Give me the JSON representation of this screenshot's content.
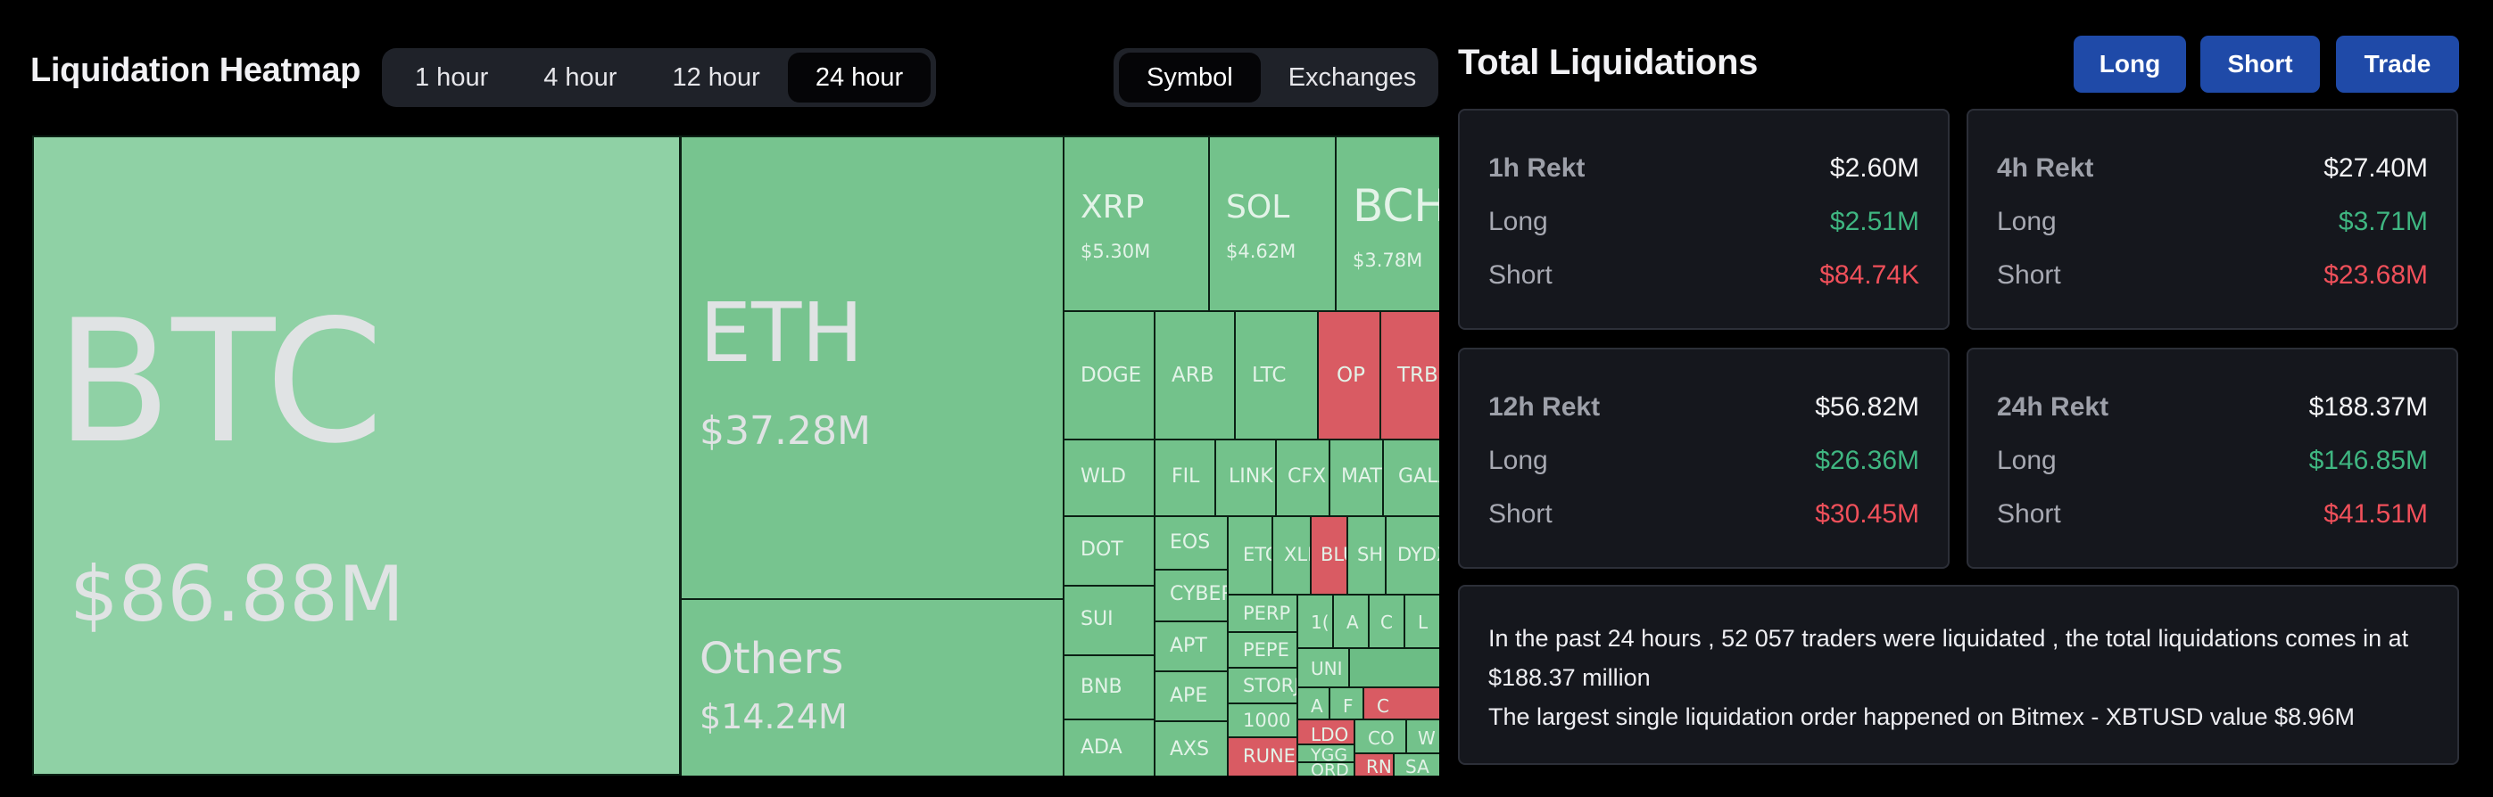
{
  "heatmap": {
    "title": "Liquidation Heatmap",
    "timeframes": [
      {
        "label": "1 hour",
        "active": false
      },
      {
        "label": "4 hour",
        "active": false
      },
      {
        "label": "12 hour",
        "active": false
      },
      {
        "label": "24 hour",
        "active": true
      }
    ],
    "views": [
      {
        "label": "Symbol",
        "active": true
      },
      {
        "label": "Exchanges",
        "active": false
      }
    ],
    "tiles": [
      {
        "symbol": "BTC",
        "value": "$86.88M",
        "status": "long"
      },
      {
        "symbol": "ETH",
        "value": "$37.28M",
        "status": "long"
      },
      {
        "symbol": "Others",
        "value": "$14.24M",
        "status": "long"
      },
      {
        "symbol": "XRP",
        "value": "$5.30M",
        "status": "long"
      },
      {
        "symbol": "SOL",
        "value": "$4.62M",
        "status": "long"
      },
      {
        "symbol": "BCH",
        "value": "$3.78M",
        "status": "long"
      },
      {
        "symbol": "DOGE",
        "status": "long"
      },
      {
        "symbol": "ARB",
        "status": "long"
      },
      {
        "symbol": "LTC",
        "status": "long"
      },
      {
        "symbol": "OP",
        "status": "short"
      },
      {
        "symbol": "TRB",
        "status": "short"
      },
      {
        "symbol": "WLD",
        "status": "long"
      },
      {
        "symbol": "FIL",
        "status": "long"
      },
      {
        "symbol": "LINK",
        "status": "long"
      },
      {
        "symbol": "CFX",
        "status": "long"
      },
      {
        "symbol": "MATIC",
        "status": "long"
      },
      {
        "symbol": "GALA",
        "status": "long"
      },
      {
        "symbol": "DOT",
        "status": "long"
      },
      {
        "symbol": "EOS",
        "status": "long"
      },
      {
        "symbol": "ETC",
        "status": "long"
      },
      {
        "symbol": "XLM",
        "status": "long"
      },
      {
        "symbol": "BLUR",
        "status": "short"
      },
      {
        "symbol": "SHIB",
        "status": "long"
      },
      {
        "symbol": "DYDX",
        "status": "long"
      },
      {
        "symbol": "SUI",
        "status": "long"
      },
      {
        "symbol": "CYBER",
        "status": "long"
      },
      {
        "symbol": "APT",
        "status": "long"
      },
      {
        "symbol": "PERP",
        "status": "long"
      },
      {
        "symbol": "PEPE",
        "status": "long"
      },
      {
        "symbol": "BNB",
        "status": "long"
      },
      {
        "symbol": "APE",
        "status": "long"
      },
      {
        "symbol": "STORJ",
        "status": "long"
      },
      {
        "symbol": "1000",
        "status": "long"
      },
      {
        "symbol": "ADA",
        "status": "long"
      },
      {
        "symbol": "AXS",
        "status": "long"
      },
      {
        "symbol": "RUNE",
        "status": "short"
      },
      {
        "symbol": "1(",
        "status": "long"
      },
      {
        "symbol": "A",
        "status": "long"
      },
      {
        "symbol": "C",
        "status": "long"
      },
      {
        "symbol": "L",
        "status": "long"
      },
      {
        "symbol": "UNI",
        "status": "long"
      },
      {
        "symbol": "A",
        "status": "long"
      },
      {
        "symbol": "F",
        "status": "long"
      },
      {
        "symbol": "C",
        "status": "short"
      },
      {
        "symbol": "LDO",
        "status": "short"
      },
      {
        "symbol": "YGG",
        "status": "long"
      },
      {
        "symbol": "CO",
        "status": "long"
      },
      {
        "symbol": "W",
        "status": "long"
      },
      {
        "symbol": "ORD",
        "status": "long"
      },
      {
        "symbol": "RN",
        "status": "short"
      },
      {
        "symbol": "SA",
        "status": "long"
      }
    ]
  },
  "liquidations": {
    "title": "Total Liquidations",
    "buttons": [
      "Long",
      "Short",
      "Trade"
    ],
    "cards": [
      {
        "label": "1h Rekt",
        "total": "$2.60M",
        "long_label": "Long",
        "long": "$2.51M",
        "short_label": "Short",
        "short": "$84.74K"
      },
      {
        "label": "4h Rekt",
        "total": "$27.40M",
        "long_label": "Long",
        "long": "$3.71M",
        "short_label": "Short",
        "short": "$23.68M"
      },
      {
        "label": "12h Rekt",
        "total": "$56.82M",
        "long_label": "Long",
        "long": "$26.36M",
        "short_label": "Short",
        "short": "$30.45M"
      },
      {
        "label": "24h Rekt",
        "total": "$188.37M",
        "long_label": "Long",
        "long": "$146.85M",
        "short_label": "Short",
        "short": "$41.51M"
      }
    ],
    "summary_line1": "In the past 24 hours , 52 057 traders were liquidated , the total liquidations comes in at $188.37 million",
    "summary_line2": "The largest single liquidation order happened on Bitmex - XBTUSD value $8.96M"
  },
  "colors": {
    "long_tile": "#77c48f",
    "short_tile": "#d95b63",
    "long_text": "#3fb681",
    "short_text": "#f0505a",
    "accent_button": "#1f4aa8"
  }
}
